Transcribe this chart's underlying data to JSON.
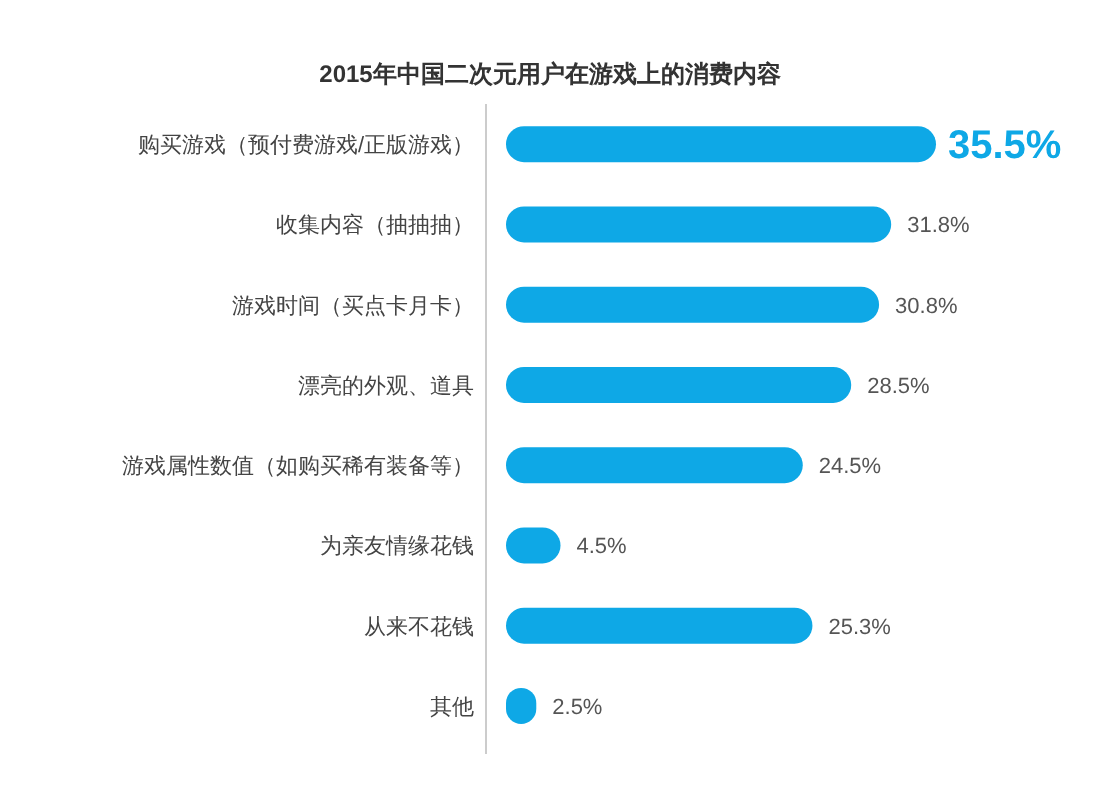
{
  "chart_data": {
    "type": "bar",
    "orientation": "horizontal",
    "title": "2015年中国二次元用户在游戏上的消费内容",
    "categories": [
      "购买游戏（预付费游戏/正版游戏）",
      "收集内容（抽抽抽）",
      "游戏时间（买点卡月卡）",
      "漂亮的外观、道具",
      "游戏属性数值（如购买稀有装备等）",
      "为亲友情缘花钱",
      "从来不花钱",
      "其他"
    ],
    "values": [
      35.5,
      31.8,
      30.8,
      28.5,
      24.5,
      4.5,
      25.3,
      2.5
    ],
    "value_labels": [
      "35.5%",
      "31.8%",
      "30.8%",
      "28.5%",
      "24.5%",
      "4.5%",
      "25.3%",
      "2.5%"
    ],
    "color": "#0ea8e6"
  }
}
